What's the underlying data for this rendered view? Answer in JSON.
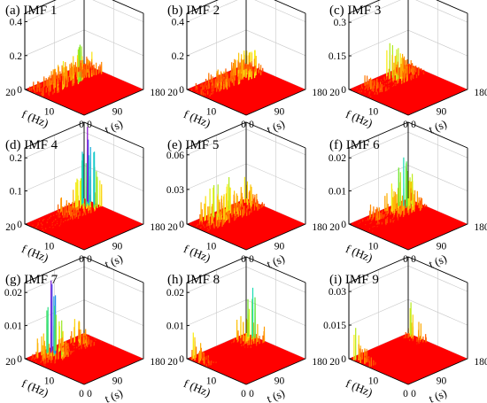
{
  "chart_data": [
    {
      "type": "surface3d",
      "title": "(a) IMF 1",
      "zticks": [
        "0",
        "0.2",
        "0.4"
      ],
      "zmax": 0.45,
      "xticks": [
        "20",
        "10",
        "0"
      ],
      "yticks": [
        "0",
        "90",
        "180"
      ],
      "xlabel": "f (Hz)",
      "ylabel": "t (s)",
      "xlim": [
        0,
        20
      ],
      "ylim": [
        0,
        180
      ],
      "seed": 11,
      "base": 0.04,
      "peaks": [
        {
          "t": 170,
          "f": 17,
          "z": 0.42
        },
        {
          "t": 150,
          "f": 12,
          "z": 0.36
        },
        {
          "t": 130,
          "f": 15,
          "z": 0.32
        },
        {
          "t": 110,
          "f": 9,
          "z": 0.28
        },
        {
          "t": 90,
          "f": 18,
          "z": 0.22
        },
        {
          "t": 60,
          "f": 8,
          "z": 0.15
        }
      ]
    },
    {
      "type": "surface3d",
      "title": "(b) IMF 2",
      "zticks": [
        "0",
        "0.2",
        "0.4"
      ],
      "zmax": 0.45,
      "xticks": [
        "20",
        "10",
        "0"
      ],
      "yticks": [
        "0",
        "90",
        "180"
      ],
      "xlabel": "f (Hz)",
      "ylabel": "t (s)",
      "xlim": [
        0,
        20
      ],
      "ylim": [
        0,
        180
      ],
      "seed": 22,
      "base": 0.02,
      "peaks": [
        {
          "t": 150,
          "f": 8,
          "z": 0.19
        },
        {
          "t": 130,
          "f": 5,
          "z": 0.14
        },
        {
          "t": 100,
          "f": 10,
          "z": 0.17
        },
        {
          "t": 60,
          "f": 6,
          "z": 0.1
        }
      ]
    },
    {
      "type": "surface3d",
      "title": "(c) IMF 3",
      "zticks": [
        "0",
        "0.15",
        "0.3"
      ],
      "zmax": 0.34,
      "xticks": [
        "20",
        "10",
        "0"
      ],
      "yticks": [
        "0",
        "90",
        "180"
      ],
      "xlabel": "f (Hz)",
      "ylabel": "t (s)",
      "xlim": [
        0,
        20
      ],
      "ylim": [
        0,
        180
      ],
      "seed": 33,
      "base": 0.005,
      "peaks": [
        {
          "t": 110,
          "f": 3,
          "z": 0.16
        },
        {
          "t": 150,
          "f": 2,
          "z": 0.08
        },
        {
          "t": 40,
          "f": 3,
          "z": 0.06
        }
      ]
    },
    {
      "type": "surface3d",
      "title": "(d) IMF 4",
      "zticks": [
        "0",
        "0.1",
        "0.2"
      ],
      "zmax": 0.23,
      "xticks": [
        "20",
        "10",
        "0"
      ],
      "yticks": [
        "0",
        "90",
        "180"
      ],
      "xlabel": "f (Hz)",
      "ylabel": "t (s)",
      "xlim": [
        0,
        20
      ],
      "ylim": [
        0,
        180
      ],
      "seed": 44,
      "base": 0.003,
      "peaks": [
        {
          "t": 175,
          "f": 1,
          "z": 0.2
        },
        {
          "t": 160,
          "f": 2,
          "z": 0.12
        },
        {
          "t": 140,
          "f": 1,
          "z": 0.09
        },
        {
          "t": 100,
          "f": 2,
          "z": 0.05
        }
      ]
    },
    {
      "type": "surface3d",
      "title": "(e) IMF 5",
      "zticks": [
        "0",
        "0.03",
        "0.06"
      ],
      "zmax": 0.066,
      "xticks": [
        "20",
        "10",
        "0"
      ],
      "yticks": [
        "0",
        "90",
        "180"
      ],
      "xlabel": "f (Hz)",
      "ylabel": "t (s)",
      "xlim": [
        0,
        20
      ],
      "ylim": [
        0,
        180
      ],
      "seed": 55,
      "base": 0.001,
      "peaks": [
        {
          "t": 70,
          "f": 1,
          "z": 0.04
        },
        {
          "t": 110,
          "f": 1.5,
          "z": 0.032
        },
        {
          "t": 160,
          "f": 1,
          "z": 0.025
        },
        {
          "t": 40,
          "f": 2,
          "z": 0.02
        }
      ]
    },
    {
      "type": "surface3d",
      "title": "(f) IMF 6",
      "zticks": [
        "0",
        "0.01",
        "0.02"
      ],
      "zmax": 0.023,
      "xticks": [
        "20",
        "10",
        "0"
      ],
      "yticks": [
        "0",
        "90",
        "180"
      ],
      "xlabel": "f (Hz)",
      "ylabel": "t (s)",
      "xlim": [
        0,
        20
      ],
      "ylim": [
        0,
        180
      ],
      "seed": 66,
      "base": 0.0002,
      "peaks": [
        {
          "t": 140,
          "f": 1,
          "z": 0.0135
        },
        {
          "t": 160,
          "f": 0.8,
          "z": 0.012
        },
        {
          "t": 110,
          "f": 1,
          "z": 0.009
        },
        {
          "t": 60,
          "f": 0.6,
          "z": 0.005
        }
      ]
    },
    {
      "type": "surface3d",
      "title": "(g) IMF 7",
      "zticks": [
        "0",
        "0.01",
        "0.02"
      ],
      "zmax": 0.023,
      "xticks": [
        "20",
        "10",
        "0"
      ],
      "yticks": [
        "0",
        "90",
        "180"
      ],
      "xlabel": "f (Hz)",
      "ylabel": "t (s)",
      "xlim": [
        0,
        20
      ],
      "ylim": [
        0,
        180
      ],
      "seed": 77,
      "base": 0.0002,
      "peaks": [
        {
          "t": 60,
          "f": 1,
          "z": 0.0155
        },
        {
          "t": 70,
          "f": 0.6,
          "z": 0.012
        },
        {
          "t": 140,
          "f": 0.5,
          "z": 0.009
        },
        {
          "t": 30,
          "f": 0.8,
          "z": 0.007
        }
      ]
    },
    {
      "type": "surface3d",
      "title": "(h) IMF 8",
      "zticks": [
        "0",
        "0.01",
        "0.02"
      ],
      "zmax": 0.023,
      "xticks": [
        "20",
        "10",
        "0"
      ],
      "yticks": [
        "0",
        "90",
        "180"
      ],
      "xlabel": "f (Hz)",
      "ylabel": "t (s)",
      "xlim": [
        0,
        20
      ],
      "ylim": [
        0,
        180
      ],
      "seed": 88,
      "base": 0.0001,
      "peaks": [
        {
          "t": 175,
          "f": 0.5,
          "z": 0.018
        },
        {
          "t": 150,
          "f": 0.4,
          "z": 0.01
        },
        {
          "t": 10,
          "f": 0.6,
          "z": 0.008
        }
      ]
    },
    {
      "type": "surface3d",
      "title": "(i) IMF 9",
      "zticks": [
        "0",
        "0.015",
        "0.03"
      ],
      "zmax": 0.034,
      "xticks": [
        "20",
        "10",
        "0"
      ],
      "yticks": [
        "0",
        "90",
        "180"
      ],
      "xlabel": "f (Hz)",
      "ylabel": "t (s)",
      "xlim": [
        0,
        20
      ],
      "ylim": [
        0,
        180
      ],
      "seed": 99,
      "base": 0.0001,
      "peaks": [
        {
          "t": 178,
          "f": 0.3,
          "z": 0.02
        },
        {
          "t": 5,
          "f": 0.4,
          "z": 0.018
        }
      ]
    }
  ]
}
